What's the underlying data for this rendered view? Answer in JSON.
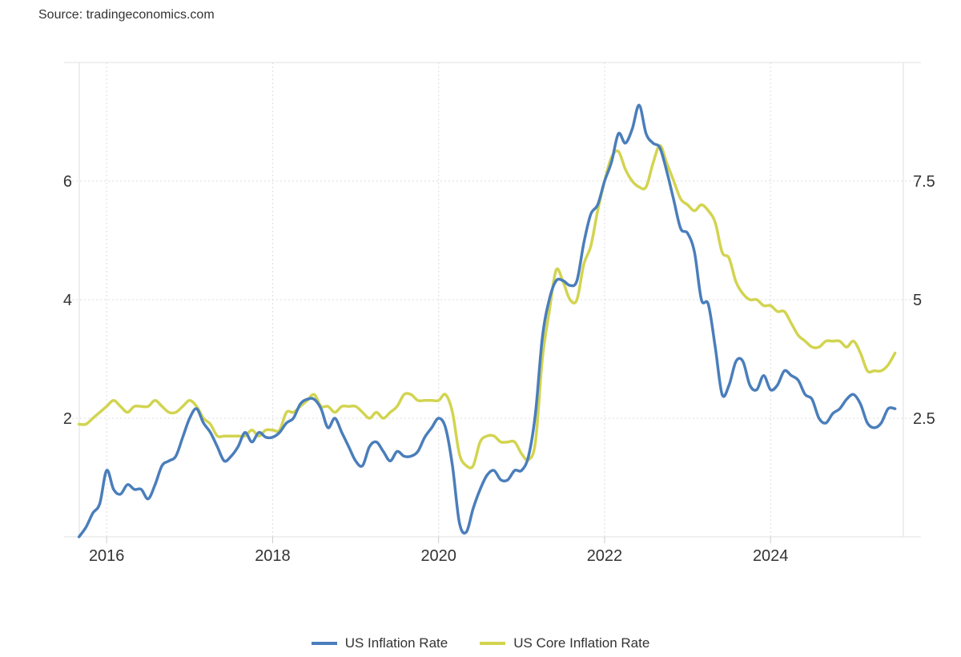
{
  "source": "Source: tradingeconomics.com",
  "colors": {
    "inflation": "#4a7ebb",
    "core": "#d2d450"
  },
  "chart_data": {
    "type": "line",
    "title": "",
    "x_start": "2015-09",
    "x_frequency": "monthly",
    "xlim": [
      2015.67,
      2025.6
    ],
    "x_ticks": [
      "2016",
      "2018",
      "2020",
      "2022",
      "2024"
    ],
    "y_left": {
      "ylim": [
        0,
        8
      ],
      "ticks": [
        "2",
        "4",
        "6"
      ],
      "tick_values": [
        2,
        4,
        6
      ]
    },
    "y_right": {
      "ylim": [
        0,
        10
      ],
      "ticks": [
        "2.5",
        "5",
        "7.5"
      ],
      "tick_values": [
        2.5,
        5,
        7.5
      ]
    },
    "grid": true,
    "legend_position": "bottom-center",
    "series": [
      {
        "name": "US Inflation Rate",
        "axis": "right",
        "values": [
          0.0,
          0.2,
          0.5,
          0.7,
          1.4,
          1.0,
          0.9,
          1.1,
          1.0,
          1.0,
          0.8,
          1.1,
          1.5,
          1.6,
          1.7,
          2.1,
          2.5,
          2.7,
          2.4,
          2.2,
          1.9,
          1.6,
          1.7,
          1.9,
          2.2,
          2.0,
          2.2,
          2.1,
          2.1,
          2.2,
          2.4,
          2.5,
          2.8,
          2.9,
          2.9,
          2.7,
          2.3,
          2.5,
          2.2,
          1.9,
          1.6,
          1.5,
          1.9,
          2.0,
          1.8,
          1.6,
          1.8,
          1.7,
          1.7,
          1.8,
          2.1,
          2.3,
          2.5,
          2.3,
          1.5,
          0.3,
          0.1,
          0.6,
          1.0,
          1.3,
          1.4,
          1.2,
          1.2,
          1.4,
          1.4,
          1.7,
          2.6,
          4.2,
          5.0,
          5.4,
          5.4,
          5.3,
          5.4,
          6.2,
          6.8,
          7.0,
          7.5,
          7.9,
          8.5,
          8.3,
          8.6,
          9.1,
          8.5,
          8.3,
          8.2,
          7.7,
          7.1,
          6.5,
          6.4,
          6.0,
          5.0,
          4.9,
          4.0,
          3.0,
          3.2,
          3.7,
          3.7,
          3.2,
          3.1,
          3.4,
          3.1,
          3.2,
          3.5,
          3.4,
          3.3,
          3.0,
          2.9,
          2.5,
          2.4,
          2.6,
          2.7,
          2.9,
          3.0,
          2.8,
          2.4,
          2.3,
          2.4,
          2.7,
          2.7
        ]
      },
      {
        "name": "US Core Inflation Rate",
        "axis": "left",
        "values": [
          1.9,
          1.9,
          2.0,
          2.1,
          2.2,
          2.3,
          2.2,
          2.1,
          2.2,
          2.2,
          2.2,
          2.3,
          2.2,
          2.1,
          2.1,
          2.2,
          2.3,
          2.2,
          2.0,
          1.9,
          1.7,
          1.7,
          1.7,
          1.7,
          1.7,
          1.8,
          1.7,
          1.8,
          1.8,
          1.8,
          2.1,
          2.1,
          2.2,
          2.3,
          2.4,
          2.2,
          2.2,
          2.1,
          2.2,
          2.2,
          2.2,
          2.1,
          2.0,
          2.1,
          2.0,
          2.1,
          2.2,
          2.4,
          2.4,
          2.3,
          2.3,
          2.3,
          2.3,
          2.4,
          2.1,
          1.4,
          1.2,
          1.2,
          1.6,
          1.7,
          1.7,
          1.6,
          1.6,
          1.6,
          1.4,
          1.3,
          1.6,
          3.0,
          3.8,
          4.5,
          4.3,
          4.0,
          4.0,
          4.6,
          4.9,
          5.5,
          6.0,
          6.4,
          6.5,
          6.2,
          6.0,
          5.9,
          5.9,
          6.3,
          6.6,
          6.3,
          6.0,
          5.7,
          5.6,
          5.5,
          5.6,
          5.5,
          5.3,
          4.8,
          4.7,
          4.3,
          4.1,
          4.0,
          4.0,
          3.9,
          3.9,
          3.8,
          3.8,
          3.6,
          3.4,
          3.3,
          3.2,
          3.2,
          3.3,
          3.3,
          3.3,
          3.2,
          3.3,
          3.1,
          2.8,
          2.8,
          2.8,
          2.9,
          3.1
        ]
      }
    ]
  }
}
